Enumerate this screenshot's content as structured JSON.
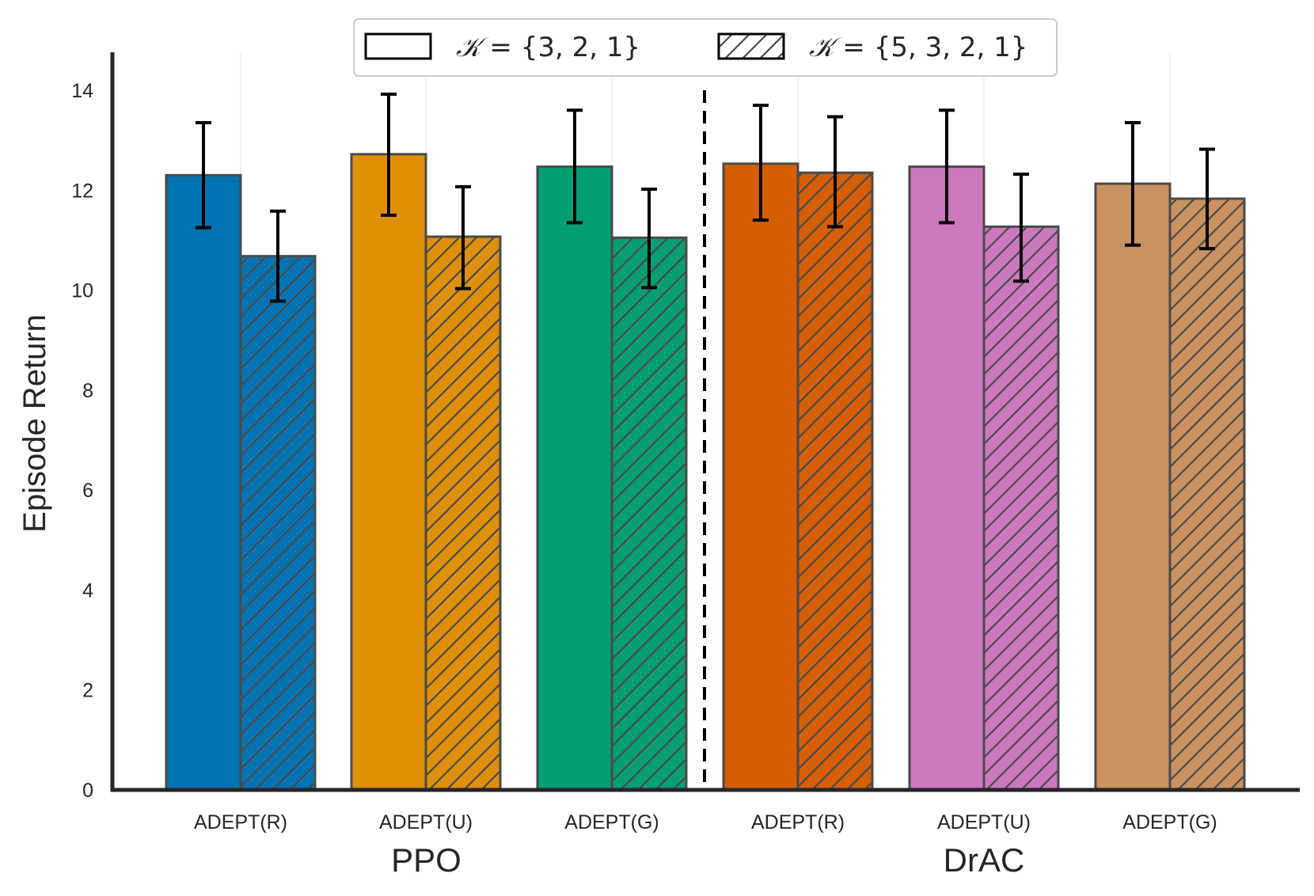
{
  "chart_data": {
    "type": "bar",
    "ylabel": "Episode Return",
    "xlabel": "",
    "ylim": [
      0,
      14.7
    ],
    "yticks": [
      0,
      2,
      4,
      6,
      8,
      10,
      12,
      14
    ],
    "grid": "vertical faint lines at category centers",
    "legend_placement": "top-center",
    "groups": [
      {
        "name": "PPO",
        "categories": [
          "ADEPT(R)",
          "ADEPT(U)",
          "ADEPT(G)"
        ]
      },
      {
        "name": "DrAC",
        "categories": [
          "ADEPT(R)",
          "ADEPT(U)",
          "ADEPT(G)"
        ]
      }
    ],
    "categories": [
      "ADEPT(R)",
      "ADEPT(U)",
      "ADEPT(G)",
      "ADEPT(R)",
      "ADEPT(U)",
      "ADEPT(G)"
    ],
    "colors": [
      "#0173b2",
      "#de8f05",
      "#029e73",
      "#d55e00",
      "#cc78bc",
      "#ca9161"
    ],
    "edge_color": "#4a4a4a",
    "divider": "dashed vertical line between PPO and DrAC groups",
    "series": [
      {
        "name": "K = {3, 2, 1}",
        "legend_prefix": "𝒦",
        "legend_suffix": " = {3, 2, 1}",
        "hatch": "none",
        "values": [
          12.3,
          12.72,
          12.47,
          12.53,
          12.47,
          12.13
        ],
        "error_low": [
          11.25,
          11.5,
          11.35,
          11.4,
          11.35,
          10.9
        ],
        "error_high": [
          13.35,
          13.92,
          13.6,
          13.7,
          13.6,
          13.35
        ]
      },
      {
        "name": "K = {5, 3, 2, 1}",
        "legend_prefix": "𝒦",
        "legend_suffix": " = {5, 3, 2, 1}",
        "hatch": "diagonal",
        "values": [
          10.68,
          11.07,
          11.05,
          12.35,
          11.27,
          11.83
        ],
        "error_low": [
          9.78,
          10.03,
          10.05,
          11.27,
          10.18,
          10.83
        ],
        "error_high": [
          11.58,
          12.07,
          12.02,
          13.47,
          12.32,
          12.82
        ]
      }
    ]
  }
}
